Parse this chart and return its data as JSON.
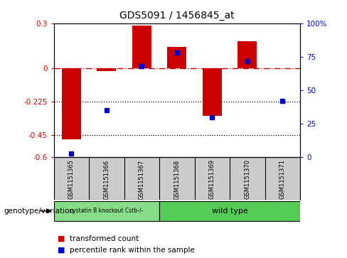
{
  "title": "GDS5091 / 1456845_at",
  "samples": [
    "GSM1151365",
    "GSM1151366",
    "GSM1151367",
    "GSM1151368",
    "GSM1151369",
    "GSM1151370",
    "GSM1151371"
  ],
  "transformed_count": [
    -0.48,
    -0.02,
    0.285,
    0.14,
    -0.32,
    0.18,
    0.0
  ],
  "percentile_rank": [
    3,
    35,
    68,
    78,
    30,
    72,
    42
  ],
  "ylim_left": [
    -0.6,
    0.3
  ],
  "ylim_right": [
    0,
    100
  ],
  "yticks_left": [
    0.3,
    0.0,
    -0.225,
    -0.45,
    -0.6
  ],
  "yticks_right": [
    100,
    75,
    50,
    25,
    0
  ],
  "ytick_labels_left": [
    "0.3",
    "0",
    "-0.225",
    "-0.45",
    "-0.6"
  ],
  "ytick_labels_right": [
    "100%",
    "75",
    "50",
    "25",
    "0"
  ],
  "hline_dotted": [
    -0.225,
    -0.45
  ],
  "hline_dashdot": 0.0,
  "bar_color": "#CC0000",
  "dot_color": "#0000CC",
  "bar_width": 0.55,
  "group1_label": "cystatin B knockout Cstb-/-",
  "group2_label": "wild type",
  "group1_indices": [
    0,
    1,
    2
  ],
  "group2_indices": [
    3,
    4,
    5,
    6
  ],
  "group1_color": "#88DD88",
  "group2_color": "#55CC55",
  "genotype_label": "genotype/variation",
  "legend1_label": "transformed count",
  "legend2_label": "percentile rank within the sample",
  "sample_bg_color": "#CCCCCC",
  "plot_bg_color": "#FFFFFF"
}
